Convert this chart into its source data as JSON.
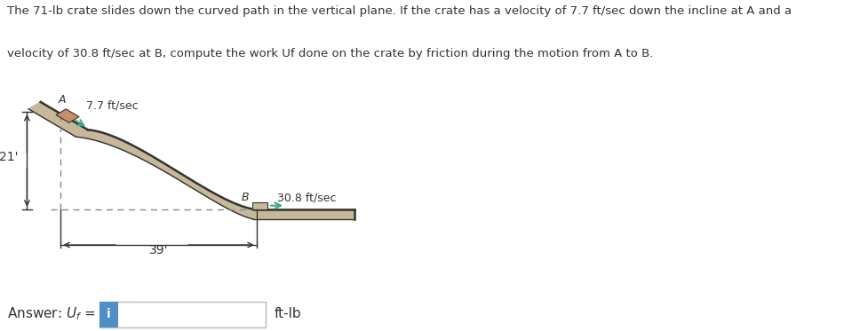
{
  "title_line1": "The 71-lb crate slides down the curved path in the vertical plane. If the crate has a velocity of 7.7 ft/sec down the incline at A and a",
  "title_line2": "velocity of 30.8 ft/sec at B, compute the work Uf done on the crate by friction during the motion from A to B.",
  "label_A": "A",
  "label_B": "B",
  "vel_A": "7.7 ft/sec",
  "vel_B": "30.8 ft/sec",
  "dim_height": "21'",
  "dim_width": "39'",
  "answer_units": "ft-lb",
  "bg_color": "#ffffff",
  "path_fill_color": "#c8b89a",
  "path_edge_color": "#333333",
  "crate_color_A": "#c8906a",
  "crate_color_B": "#c8b898",
  "arrow_vel_color": "#3aaa80",
  "dashed_color": "#888888",
  "dim_color": "#333333",
  "text_color": "#333333",
  "input_box_color": "#4f8fc8",
  "input_box_text": "i",
  "title_fontsize": 9.5,
  "label_fontsize": 9,
  "dim_fontsize": 10,
  "ans_fontsize": 11
}
